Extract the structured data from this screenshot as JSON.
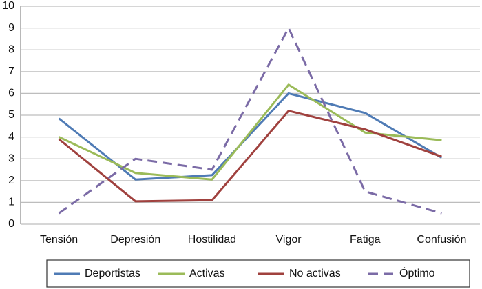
{
  "chart_data": {
    "type": "line",
    "categories": [
      "Tensión",
      "Depresión",
      "Hostilidad",
      "Vigor",
      "Fatiga",
      "Confusión"
    ],
    "series": [
      {
        "name": "Deportistas",
        "color": "#4f7bb5",
        "dashed": false,
        "values": [
          4.85,
          2.05,
          2.25,
          6.0,
          5.1,
          3.05
        ]
      },
      {
        "name": "Activas",
        "color": "#9bbb59",
        "dashed": false,
        "values": [
          4.0,
          2.35,
          2.05,
          6.4,
          4.2,
          3.85
        ]
      },
      {
        "name": "No activas",
        "color": "#a0413e",
        "dashed": false,
        "values": [
          3.9,
          1.05,
          1.1,
          5.2,
          4.35,
          3.1
        ]
      },
      {
        "name": "Óptimo",
        "color": "#7b6ba6",
        "dashed": true,
        "values": [
          0.5,
          3.0,
          2.5,
          9.0,
          1.5,
          0.5
        ]
      }
    ],
    "ylim": [
      0,
      10
    ],
    "yticks": [
      0,
      1,
      2,
      3,
      4,
      5,
      6,
      7,
      8,
      9,
      10
    ],
    "grid": true,
    "legend": "bottom"
  }
}
